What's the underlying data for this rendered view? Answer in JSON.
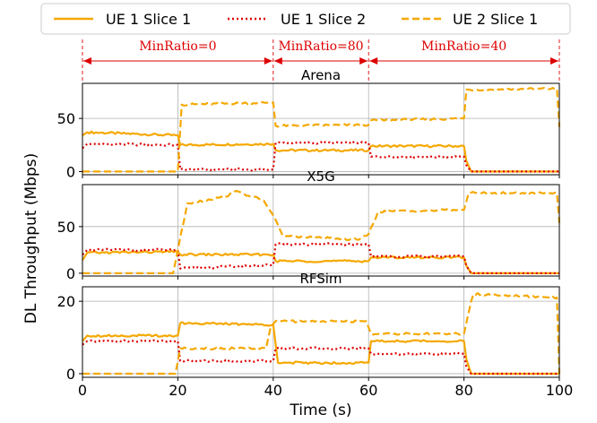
{
  "colors": {
    "ue1_slice1": "#f5a800",
    "ue1_slice2": "#dd0000",
    "ue2_slice1": "#f5a800",
    "annotation": "#dd0000",
    "grid": "#b0b0b0"
  },
  "chart_data": {
    "type": "line",
    "xlabel": "Time (s)",
    "ylabel": "DL Throughput (Mbps)",
    "xlim": [
      0,
      100
    ],
    "xticks": [
      0,
      20,
      40,
      60,
      80,
      100
    ],
    "grid": true,
    "legend": {
      "placement": "top",
      "entries": [
        {
          "label": "UE 1 Slice 1",
          "style": "solid"
        },
        {
          "label": "UE 1 Slice 2",
          "style": "dotted"
        },
        {
          "label": "UE 2 Slice 1",
          "style": "dashed"
        }
      ]
    },
    "annotations": [
      {
        "label": "MinRatio=0",
        "x_start": 0,
        "x_end": 40
      },
      {
        "label": "MinRatio=80",
        "x_start": 40,
        "x_end": 60
      },
      {
        "label": "MinRatio=40",
        "x_start": 60,
        "x_end": 100
      }
    ],
    "panels": [
      {
        "title": "Arena",
        "ylim": [
          -3,
          83
        ],
        "yticks": [
          0,
          50
        ],
        "series": [
          {
            "name": "UE 1 Slice 1",
            "x": [
              0,
              1,
              20,
              20.5,
              40,
              40.5,
              60,
              60.5,
              80,
              80.5,
              81.5,
              100
            ],
            "y": [
              34,
              37,
              34,
              25,
              26,
              20,
              20,
              24,
              24,
              10,
              0,
              0
            ]
          },
          {
            "name": "UE 1 Slice 2",
            "x": [
              0,
              1,
              20,
              20.5,
              40,
              40.5,
              60,
              60.5,
              80,
              80.5,
              81.5,
              100
            ],
            "y": [
              22,
              26,
              25,
              2,
              2,
              27,
              27,
              14,
              14,
              6,
              0,
              0
            ]
          },
          {
            "name": "UE 2 Slice 1",
            "x": [
              0,
              20,
              20.8,
              40,
              40.5,
              60,
              60.5,
              80,
              80.5,
              99.5,
              100
            ],
            "y": [
              0,
              0,
              63,
              65,
              43,
              44,
              48,
              50,
              77,
              78,
              42
            ]
          }
        ]
      },
      {
        "title": "X5G",
        "ylim": [
          -3,
          95
        ],
        "yticks": [
          0,
          50
        ],
        "series": [
          {
            "name": "UE 1 Slice 1",
            "x": [
              0,
              1,
              20,
              20.5,
              40,
              40.5,
              60,
              60.5,
              80,
              80.5,
              81.5,
              100
            ],
            "y": [
              14,
              22,
              23,
              20,
              20,
              13,
              13,
              17,
              17,
              8,
              0,
              0
            ]
          },
          {
            "name": "UE 1 Slice 2",
            "x": [
              0,
              1,
              20,
              20.5,
              40,
              40.5,
              60,
              60.5,
              80,
              80.5,
              81.5,
              100
            ],
            "y": [
              20,
              25,
              25,
              5,
              9,
              31,
              31,
              18,
              18,
              8,
              0,
              0
            ]
          },
          {
            "name": "UE 2 Slice 1",
            "x": [
              0,
              19,
              22,
              30,
              32,
              38,
              40,
              42,
              58,
              60,
              62,
              80,
              81,
              99.5,
              100
            ],
            "y": [
              0,
              0,
              75,
              82,
              88,
              78,
              62,
              40,
              36,
              42,
              66,
              68,
              86,
              86,
              54
            ]
          }
        ]
      },
      {
        "title": "RFSim",
        "ylim": [
          -1,
          24
        ],
        "yticks": [
          0,
          20
        ],
        "series": [
          {
            "name": "UE 1 Slice 1",
            "x": [
              0,
              1,
              20,
              20.5,
              40,
              41,
              60,
              60.5,
              80,
              80.5,
              81.5,
              100
            ],
            "y": [
              9,
              10.5,
              10.5,
              14,
              13.5,
              3,
              3,
              9,
              9,
              4,
              0,
              0
            ]
          },
          {
            "name": "UE 1 Slice 2",
            "x": [
              0,
              1,
              20,
              20.5,
              40,
              40.5,
              60,
              60.5,
              80,
              80.5,
              81.5,
              100
            ],
            "y": [
              8,
              9,
              9,
              3.5,
              3.5,
              7,
              7,
              5.5,
              5.5,
              2,
              0,
              0
            ]
          },
          {
            "name": "UE 2 Slice 1",
            "x": [
              0,
              19.5,
              20.5,
              38.5,
              39.5,
              40.5,
              59.5,
              60.5,
              80,
              81.5,
              82,
              99.5,
              100
            ],
            "y": [
              0,
              0,
              7,
              7,
              13,
              14.5,
              14.5,
              11,
              11,
              20,
              22,
              21,
              0
            ]
          }
        ]
      }
    ]
  }
}
